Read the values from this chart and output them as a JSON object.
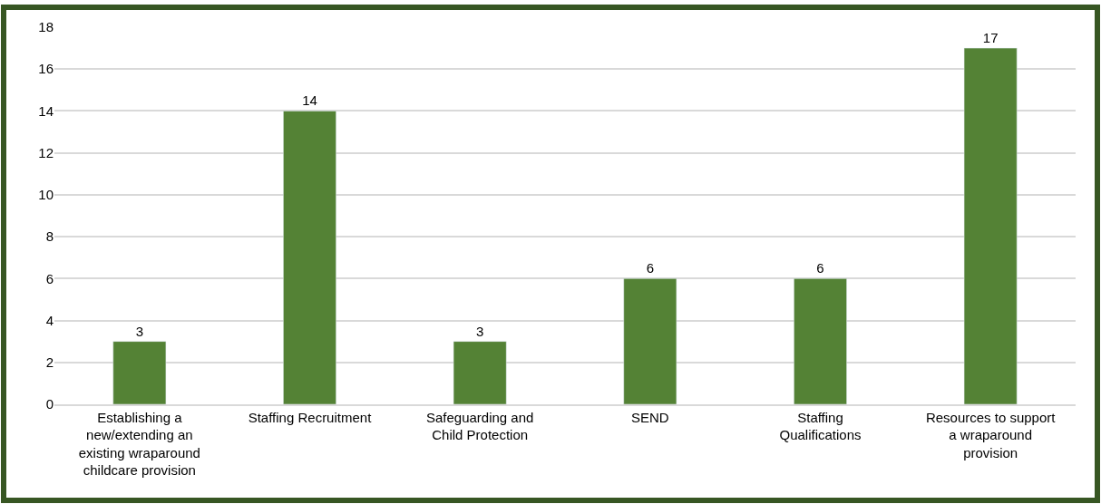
{
  "chart_data": {
    "type": "bar",
    "categories": [
      "Establishing a new/extending an existing wraparound childcare provision",
      "Staffing Recruitment",
      "Safeguarding and Child Protection",
      "SEND",
      "Staffing Qualifications",
      "Resources to support a wraparound provision"
    ],
    "values": [
      3,
      14,
      3,
      6,
      6,
      17
    ],
    "color": "#548235",
    "ylim": [
      0,
      18
    ],
    "yticks": [
      0,
      2,
      4,
      6,
      8,
      10,
      12,
      14,
      16,
      18
    ],
    "grid": "y",
    "data_labels": true,
    "legend": false
  }
}
